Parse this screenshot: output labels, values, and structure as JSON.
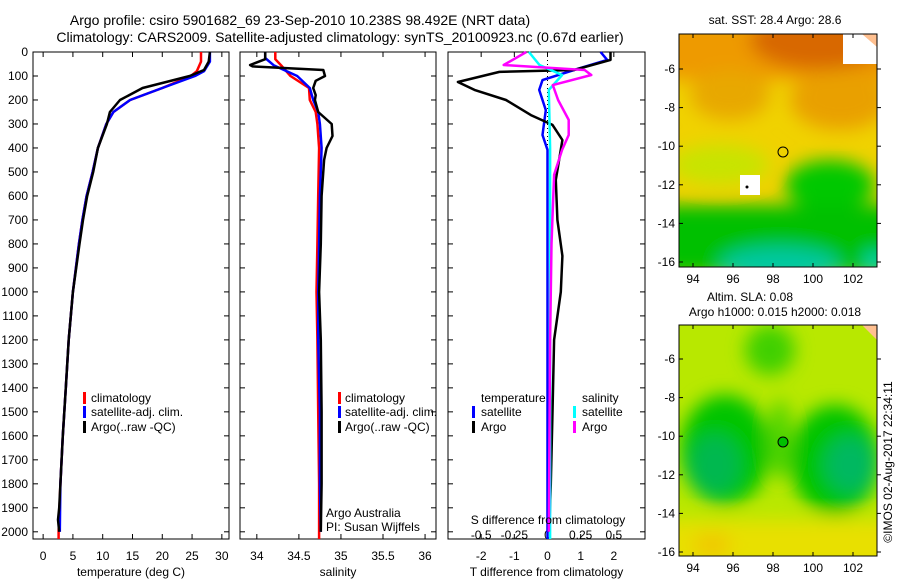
{
  "title": {
    "line1": "Argo profile: csiro 5901682_69 23-Sep-2010 10.238S 98.492E (NRT data)",
    "line2": "Climatology: CARS2009. Satellite-adjusted climatology: synTS_20100923.nc (0.67d earlier)"
  },
  "colors": {
    "climatology": "#ff0000",
    "satellite": "#0000ff",
    "argo": "#000000",
    "sal_satellite": "#00ffff",
    "sal_argo": "#ff00ff"
  },
  "depth_axis": {
    "ylim": [
      0,
      2030
    ],
    "ticks": [
      0,
      100,
      200,
      300,
      400,
      500,
      600,
      700,
      800,
      900,
      1000,
      1100,
      1200,
      1300,
      1400,
      1500,
      1600,
      1700,
      1800,
      1900,
      2000
    ]
  },
  "chart_data": [
    {
      "type": "line",
      "id": "temperature",
      "xlabel": "temperature (deg C)",
      "xlim": [
        -1.7,
        31.2
      ],
      "xticks": [
        0,
        5,
        10,
        15,
        20,
        25,
        30
      ],
      "legend": [
        {
          "label": "climatology",
          "color": "#ff0000"
        },
        {
          "label": "satellite-adj. clim.",
          "color": "#0000ff"
        },
        {
          "label": "Argo(..raw -QC)",
          "color": "#000000"
        }
      ],
      "series": [
        {
          "name": "climatology",
          "color": "#ff0000",
          "depth": [
            0,
            40,
            80,
            100,
            150,
            200,
            250,
            300,
            400,
            500,
            600,
            700,
            800,
            1000,
            1200,
            1400,
            1600,
            1800,
            2000,
            2030
          ],
          "values": [
            26.5,
            26.5,
            25.8,
            24.8,
            20,
            14.6,
            11.8,
            10.6,
            9.2,
            8.3,
            7.3,
            6.6,
            6.0,
            5.0,
            4.3,
            3.8,
            3.3,
            2.9,
            2.6,
            2.6
          ]
        },
        {
          "name": "satellite-adj. clim.",
          "color": "#0000ff",
          "depth": [
            0,
            40,
            80,
            100,
            150,
            200,
            250,
            300,
            400,
            500,
            600,
            700,
            800,
            1000,
            1200,
            1400,
            1600,
            1800,
            2000
          ],
          "values": [
            28,
            28,
            27,
            25.5,
            20,
            14.6,
            11.8,
            10.6,
            9.2,
            8.3,
            7.3,
            6.6,
            6.0,
            5.0,
            4.3,
            3.8,
            3.3,
            2.9,
            2.8
          ]
        },
        {
          "name": "Argo",
          "color": "#000000",
          "depth": [
            0,
            40,
            75,
            100,
            150,
            200,
            250,
            300,
            400,
            500,
            600,
            700,
            800,
            1000,
            1200,
            1400,
            1600,
            1800,
            1900,
            1950,
            2000
          ],
          "values": [
            28,
            27.8,
            27,
            24.6,
            16.7,
            12.9,
            11.2,
            10.7,
            9.2,
            8.4,
            7.4,
            6.7,
            6.1,
            5.0,
            4.3,
            3.8,
            3.3,
            2.9,
            2.7,
            2.5,
            2.7
          ]
        }
      ]
    },
    {
      "type": "line",
      "id": "salinity",
      "xlabel": "salinity",
      "xlim": [
        33.8,
        36.13
      ],
      "xticks": [
        34,
        34.5,
        35,
        35.5,
        36
      ],
      "legend": [
        {
          "label": "climatology",
          "color": "#ff0000"
        },
        {
          "label": "satellite-adj. clim.",
          "color": "#0000ff"
        },
        {
          "label": "Argo(..raw -QC)",
          "color": "#000000"
        }
      ],
      "annotation": [
        "Argo Australia",
        "PI: Susan Wijffels"
      ],
      "series": [
        {
          "name": "climatology",
          "color": "#ff0000",
          "depth": [
            0,
            30,
            60,
            100,
            150,
            200,
            250,
            300,
            400,
            600,
            800,
            1000,
            1200,
            1500,
            1800,
            2030
          ],
          "values": [
            34.22,
            34.22,
            34.3,
            34.4,
            34.62,
            34.63,
            34.7,
            34.72,
            34.74,
            34.73,
            34.72,
            34.71,
            34.72,
            34.73,
            34.74,
            34.74
          ]
        },
        {
          "name": "satellite-adj. clim.",
          "color": "#0000ff",
          "depth": [
            0,
            25,
            55,
            100,
            150,
            200,
            250,
            300,
            400,
            600,
            800,
            1000,
            1200,
            1500,
            1800,
            2000
          ],
          "values": [
            34.1,
            34.1,
            34.2,
            34.48,
            34.63,
            34.67,
            34.73,
            34.75,
            34.77,
            34.75,
            34.74,
            34.73,
            34.73,
            34.75,
            34.75,
            34.76
          ]
        },
        {
          "name": "Argo",
          "color": "#000000",
          "depth": [
            0,
            30,
            54,
            60,
            75,
            100,
            120,
            150,
            180,
            200,
            250,
            300,
            350,
            400,
            450,
            600,
            800,
            1000,
            1200,
            1500,
            1800,
            2000
          ],
          "values": [
            34.1,
            34.1,
            33.92,
            33.95,
            34.79,
            34.81,
            34.7,
            34.67,
            34.7,
            34.69,
            34.73,
            34.89,
            34.9,
            34.83,
            34.8,
            34.77,
            34.76,
            34.74,
            34.76,
            34.77,
            34.77,
            34.76
          ]
        }
      ]
    },
    {
      "type": "line",
      "id": "difference",
      "xlabel": "T difference from climatology",
      "xlim": [
        -3,
        2.94
      ],
      "xticks": [
        -2,
        -1,
        0,
        1,
        2
      ],
      "s_axis": {
        "label": "S difference from climatology",
        "ticks": [
          -0.5,
          -0.25,
          0,
          0.25,
          0.5
        ],
        "scale_factor": 4
      },
      "legend": {
        "temperature": "temperature",
        "salinity": "salinity",
        "items": [
          {
            "group": "temperature",
            "label": "satellite",
            "color": "#0000ff"
          },
          {
            "group": "temperature",
            "label": "Argo",
            "color": "#000000"
          },
          {
            "group": "salinity",
            "label": "satellite",
            "color": "#00ffff"
          },
          {
            "group": "salinity",
            "label": "Argo",
            "color": "#ff00ff"
          }
        ]
      },
      "series": [
        {
          "name": "T satellite",
          "color": "#0000ff",
          "units": "T",
          "depth": [
            0,
            33,
            75,
            117,
            158,
            242,
            346,
            408,
            600,
            2030
          ],
          "values": [
            1.6,
            1.8,
            0.8,
            -0.15,
            -0.25,
            -0.05,
            -0.15,
            0,
            0,
            0
          ]
        },
        {
          "name": "T Argo",
          "color": "#000000",
          "depth": [
            0,
            33,
            75,
            83,
            125,
            158,
            200,
            263,
            304,
            367,
            533,
            700,
            850,
            1000,
            1200,
            1500,
            1800,
            2000
          ],
          "values": [
            1.9,
            1.9,
            0.8,
            -1.45,
            -2.7,
            -2.2,
            -1.25,
            -0.5,
            0.15,
            0.45,
            0.25,
            0.3,
            0.45,
            0.4,
            0.2,
            0.15,
            0.1,
            0.05
          ]
        },
        {
          "name": "S satellite",
          "color": "#00ffff",
          "units": "S",
          "depth": [
            0,
            54,
            96,
            158,
            400,
            800,
            2030
          ],
          "values": [
            -0.14,
            -0.06,
            0.11,
            0.01,
            0.02,
            0.02,
            0.02
          ]
        },
        {
          "name": "S Argo",
          "color": "#ff00ff",
          "units": "S",
          "depth": [
            0,
            54,
            75,
            96,
            138,
            200,
            283,
            346,
            408,
            512,
            800,
            1200,
            2000
          ],
          "values": [
            -0.16,
            -0.33,
            0.28,
            0.33,
            0.04,
            0.08,
            0.16,
            0.16,
            0.11,
            0.05,
            0.03,
            0.02,
            0.01
          ]
        }
      ]
    }
  ],
  "maps": [
    {
      "id": "sst",
      "title": "sat. SST: 28.4 Argo: 28.6",
      "lon_ticks": [
        "94",
        "96",
        "98",
        "100",
        "102"
      ],
      "lat_ticks": [
        "-6",
        "-8",
        "-10",
        "-12",
        "-14",
        "-16"
      ],
      "marker": {
        "lon": 98.5,
        "lat": -10.3
      }
    },
    {
      "id": "sla",
      "title_line1": "Altim. SLA: 0.08",
      "title_line2": "Argo h1000: 0.015 h2000: 0.018",
      "lon_ticks": [
        "94",
        "96",
        "98",
        "100",
        "102"
      ],
      "lat_ticks": [
        "-6",
        "-8",
        "-10",
        "-12",
        "-14",
        "-16"
      ],
      "marker": {
        "lon": 98.5,
        "lat": -10.3
      }
    }
  ],
  "credit": "©IMOS 02-Aug-2017 22:34:11"
}
